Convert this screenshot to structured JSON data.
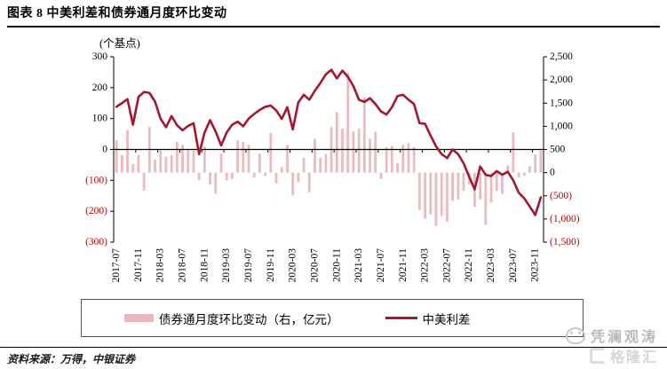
{
  "title": "图表 8  中美利差和债券通月度环比变动",
  "legend": {
    "items": [
      {
        "label": "债券通月度环比变动（右，亿元）",
        "swatch": "bar"
      },
      {
        "label": "中美利差",
        "swatch": "line"
      }
    ]
  },
  "source": {
    "prefix": "资料来源：",
    "text": "万得，中银证券"
  },
  "watermarks": {
    "primary": "凭澜观涛",
    "secondary": "格隆汇"
  },
  "chart_data": {
    "type": "combo",
    "title": "中美利差和债券通月度环比变动",
    "legend_position": "bottom",
    "grid": false,
    "x": [
      "2017-07",
      "2017-08",
      "2017-09",
      "2017-10",
      "2017-11",
      "2017-12",
      "2018-01",
      "2018-02",
      "2018-03",
      "2018-04",
      "2018-05",
      "2018-06",
      "2018-07",
      "2018-08",
      "2018-09",
      "2018-10",
      "2018-11",
      "2018-12",
      "2019-01",
      "2019-02",
      "2019-03",
      "2019-04",
      "2019-05",
      "2019-06",
      "2019-07",
      "2019-08",
      "2019-09",
      "2019-10",
      "2019-11",
      "2019-12",
      "2020-01",
      "2020-02",
      "2020-03",
      "2020-04",
      "2020-05",
      "2020-06",
      "2020-07",
      "2020-08",
      "2020-09",
      "2020-10",
      "2020-11",
      "2020-12",
      "2021-01",
      "2021-02",
      "2021-03",
      "2021-04",
      "2021-05",
      "2021-06",
      "2021-07",
      "2021-08",
      "2021-09",
      "2021-10",
      "2021-11",
      "2021-12",
      "2022-01",
      "2022-02",
      "2022-03",
      "2022-04",
      "2022-05",
      "2022-06",
      "2022-07",
      "2022-08",
      "2022-09",
      "2022-10",
      "2022-11",
      "2022-12",
      "2023-01",
      "2023-02",
      "2023-03",
      "2023-04",
      "2023-05",
      "2023-06",
      "2023-07",
      "2023-08",
      "2023-09",
      "2023-10",
      "2023-11",
      "2023-12"
    ],
    "x_tick_labels": [
      "2017-07",
      "2017-11",
      "2018-03",
      "2018-07",
      "2018-11",
      "2019-03",
      "2019-07",
      "2019-11",
      "2020-03",
      "2020-07",
      "2020-11",
      "2021-03",
      "2021-07",
      "2021-11",
      "2022-03",
      "2022-07",
      "2022-11",
      "2023-03",
      "2023-07",
      "2023-11"
    ],
    "series": [
      {
        "name": "债券通月度环比变动（右，亿元）",
        "type": "bar",
        "axis": "right",
        "color": "#E9B7BB",
        "values": [
          700,
          380,
          920,
          185,
          380,
          -390,
          985,
          280,
          475,
          345,
          380,
          665,
          600,
          505,
          475,
          -165,
          570,
          -260,
          -455,
          410,
          -165,
          -135,
          700,
          665,
          600,
          -100,
          410,
          -70,
          855,
          -230,
          120,
          600,
          -485,
          -200,
          315,
          -420,
          730,
          315,
          410,
          985,
          1305,
          950,
          2150,
          890,
          950,
          1620,
          730,
          885,
          -135,
          550,
          570,
          205,
          600,
          635,
          550,
          -805,
          -995,
          -900,
          -1155,
          -935,
          -1060,
          -610,
          -580,
          -390,
          -260,
          -740,
          -580,
          -1125,
          -645,
          -390,
          -455,
          155,
          870,
          -102,
          -70,
          140,
          390,
          475
        ]
      },
      {
        "name": "中美利差",
        "type": "line",
        "axis": "left",
        "color": "#A11931",
        "values": [
          138,
          150,
          163,
          80,
          170,
          186,
          183,
          155,
          100,
          72,
          108,
          78,
          62,
          76,
          85,
          -15,
          55,
          95,
          58,
          13,
          55,
          80,
          90,
          75,
          100,
          115,
          128,
          138,
          142,
          126,
          99,
          137,
          65,
          152,
          177,
          161,
          190,
          215,
          243,
          258,
          230,
          255,
          235,
          205,
          161,
          154,
          166,
          147,
          123,
          113,
          137,
          173,
          177,
          161,
          147,
          85,
          83,
          45,
          10,
          -15,
          -28,
          0,
          -15,
          -45,
          -88,
          -129,
          -55,
          -82,
          -86,
          -70,
          -82,
          -72,
          -100,
          -140,
          -158,
          -185,
          -212,
          -155
        ]
      }
    ],
    "left_axis": {
      "title": "(个基点)",
      "min": -300,
      "max": 300,
      "step": 100,
      "ticks": [
        "300",
        "200",
        "100",
        "0",
        "(100)",
        "(200)",
        "(300)"
      ]
    },
    "right_axis": {
      "min": -1500,
      "max": 2500,
      "step": 500,
      "ticks": [
        "2,500",
        "2,000",
        "1,500",
        "1,000",
        "500",
        "0",
        "(500)",
        "(1,000)",
        "(1,500)"
      ]
    },
    "colors": {
      "axis": "#000000",
      "tick_label": "#000000",
      "negative_tick_label": "#C00000"
    }
  }
}
